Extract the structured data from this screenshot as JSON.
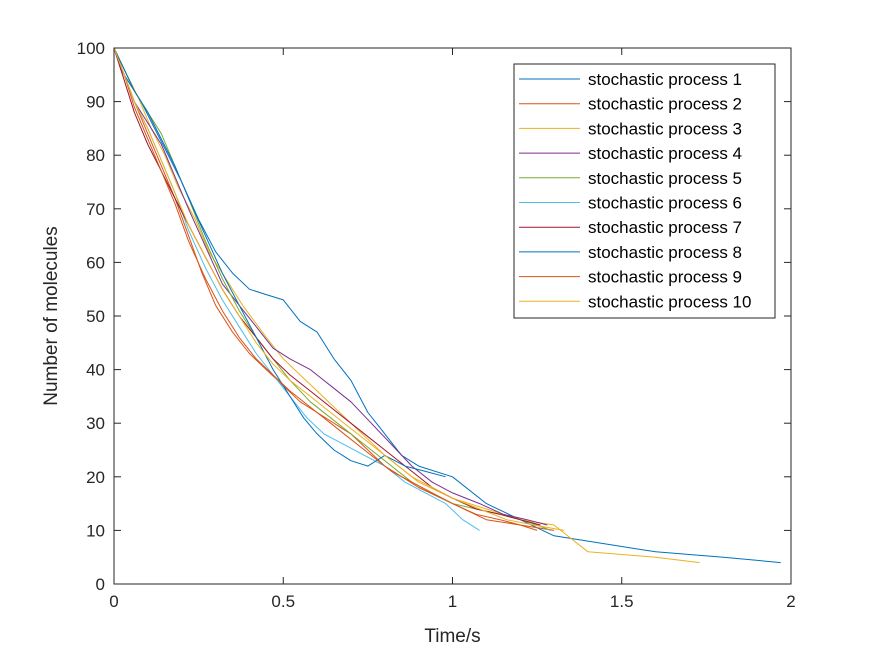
{
  "chart_data": {
    "type": "line",
    "title": "",
    "xlabel": "Time/s",
    "ylabel": "Number of molecules",
    "xlim": [
      0,
      2
    ],
    "ylim": [
      0,
      100
    ],
    "xticks": [
      0,
      0.5,
      1,
      1.5,
      2
    ],
    "xtick_labels": [
      "0",
      "0.5",
      "1",
      "1.5",
      "2"
    ],
    "yticks": [
      0,
      10,
      20,
      30,
      40,
      50,
      60,
      70,
      80,
      90,
      100
    ],
    "ytick_labels": [
      "0",
      "10",
      "20",
      "30",
      "40",
      "50",
      "60",
      "70",
      "80",
      "90",
      "100"
    ],
    "grid": false,
    "legend_position": "top-right",
    "series": [
      {
        "name": "stochastic process 1",
        "color": "#0072BD",
        "x": [
          0,
          0.02,
          0.05,
          0.08,
          0.12,
          0.16,
          0.2,
          0.25,
          0.3,
          0.35,
          0.4,
          0.45,
          0.5,
          0.55,
          0.6,
          0.65,
          0.7,
          0.75,
          0.8,
          0.85,
          0.9,
          1.0,
          1.1,
          1.2,
          1.3,
          1.5,
          1.6,
          1.8,
          1.97
        ],
        "y": [
          100,
          96,
          93,
          90,
          85,
          80,
          75,
          68,
          62,
          58,
          55,
          54,
          53,
          49,
          47,
          42,
          38,
          32,
          28,
          24,
          22,
          20,
          15,
          12,
          9,
          7,
          6,
          5,
          4
        ]
      },
      {
        "name": "stochastic process 2",
        "color": "#D95319",
        "x": [
          0,
          0.03,
          0.06,
          0.1,
          0.14,
          0.18,
          0.22,
          0.26,
          0.3,
          0.35,
          0.4,
          0.45,
          0.5,
          0.55,
          0.6,
          0.7,
          0.8,
          0.9,
          1.0,
          1.1,
          1.2,
          1.3
        ],
        "y": [
          100,
          95,
          90,
          84,
          78,
          72,
          65,
          58,
          52,
          47,
          43,
          40,
          37,
          34,
          32,
          28,
          22,
          18,
          15,
          12,
          11,
          10
        ]
      },
      {
        "name": "stochastic process 3",
        "color": "#EDB120",
        "x": [
          0,
          0.03,
          0.07,
          0.11,
          0.15,
          0.19,
          0.24,
          0.28,
          0.33,
          0.38,
          0.45,
          0.5,
          0.6,
          0.7,
          0.8,
          0.9,
          1.0,
          1.1,
          1.2,
          1.3,
          1.4,
          1.5,
          1.6,
          1.73
        ],
        "y": [
          100,
          96,
          91,
          85,
          80,
          74,
          68,
          62,
          57,
          52,
          46,
          42,
          36,
          30,
          24,
          19,
          16,
          14,
          12,
          11,
          6,
          5.5,
          5,
          4
        ]
      },
      {
        "name": "stochastic process 4",
        "color": "#7E2F8E",
        "x": [
          0,
          0.03,
          0.06,
          0.1,
          0.14,
          0.18,
          0.22,
          0.27,
          0.32,
          0.37,
          0.42,
          0.47,
          0.52,
          0.58,
          0.64,
          0.7,
          0.76,
          0.82,
          0.88,
          0.94,
          1.0,
          1.08,
          1.15,
          1.22,
          1.28
        ],
        "y": [
          100,
          95,
          90,
          86,
          82,
          76,
          70,
          63,
          56,
          52,
          48,
          44,
          42,
          40,
          37,
          34,
          30,
          26,
          22,
          19,
          17,
          15,
          13,
          12,
          11
        ]
      },
      {
        "name": "stochastic process 5",
        "color": "#77AC30",
        "x": [
          0,
          0.03,
          0.06,
          0.1,
          0.14,
          0.18,
          0.22,
          0.27,
          0.32,
          0.37,
          0.42,
          0.47,
          0.52,
          0.58,
          0.64,
          0.7,
          0.76,
          0.82,
          0.88,
          0.94,
          1.0,
          1.07,
          1.14,
          1.2,
          1.25,
          1.29
        ],
        "y": [
          100,
          96,
          92,
          88,
          84,
          78,
          72,
          64,
          57,
          51,
          46,
          42,
          38,
          34,
          31,
          28,
          25,
          22,
          19,
          17,
          15,
          14,
          13,
          12,
          11,
          10
        ]
      },
      {
        "name": "stochastic process 6",
        "color": "#4DBEEE",
        "x": [
          0,
          0.03,
          0.06,
          0.1,
          0.14,
          0.18,
          0.22,
          0.27,
          0.32,
          0.37,
          0.42,
          0.47,
          0.52,
          0.57,
          0.62,
          0.68,
          0.74,
          0.8,
          0.86,
          0.92,
          0.98,
          1.03,
          1.08
        ],
        "y": [
          100,
          95,
          90,
          85,
          79,
          73,
          66,
          59,
          53,
          48,
          43,
          39,
          35,
          31,
          28,
          26,
          24,
          22,
          19,
          17,
          15,
          12,
          10
        ]
      },
      {
        "name": "stochastic process 7",
        "color": "#A2142F",
        "x": [
          0,
          0.03,
          0.06,
          0.1,
          0.14,
          0.18,
          0.22,
          0.27,
          0.32,
          0.37,
          0.42,
          0.47,
          0.52,
          0.58,
          0.64,
          0.7,
          0.76,
          0.82,
          0.88,
          0.94,
          1.0,
          1.07,
          1.14,
          1.2,
          1.26
        ],
        "y": [
          100,
          94,
          88,
          82,
          77,
          72,
          67,
          61,
          55,
          50,
          46,
          42,
          39,
          36,
          33,
          30,
          27,
          24,
          21,
          18,
          16,
          14,
          13,
          12,
          11
        ]
      },
      {
        "name": "stochastic process 8",
        "color": "#0072BD",
        "x": [
          0,
          0.03,
          0.06,
          0.1,
          0.14,
          0.18,
          0.22,
          0.27,
          0.32,
          0.37,
          0.42,
          0.47,
          0.52,
          0.56,
          0.6,
          0.65,
          0.7,
          0.75,
          0.8,
          0.86,
          0.92,
          0.98
        ],
        "y": [
          100,
          96,
          92,
          88,
          83,
          78,
          72,
          65,
          58,
          52,
          46,
          40,
          35,
          31,
          28,
          25,
          23,
          22,
          24,
          22,
          21,
          20
        ]
      },
      {
        "name": "stochastic process 9",
        "color": "#D95319",
        "x": [
          0,
          0.03,
          0.06,
          0.1,
          0.14,
          0.18,
          0.22,
          0.27,
          0.32,
          0.37,
          0.42,
          0.47,
          0.52,
          0.58,
          0.64,
          0.7,
          0.76,
          0.82,
          0.88,
          0.94,
          1.0,
          1.07,
          1.14,
          1.2,
          1.25
        ],
        "y": [
          100,
          95,
          89,
          83,
          77,
          71,
          64,
          57,
          51,
          46,
          42,
          39,
          36,
          33,
          30,
          27,
          24,
          21,
          19,
          17,
          15,
          13,
          12,
          11,
          10
        ]
      },
      {
        "name": "stochastic process 10",
        "color": "#EDB120",
        "x": [
          0,
          0.03,
          0.06,
          0.1,
          0.14,
          0.18,
          0.22,
          0.27,
          0.32,
          0.37,
          0.42,
          0.47,
          0.52,
          0.58,
          0.64,
          0.7,
          0.76,
          0.82,
          0.88,
          0.94,
          1.0,
          1.08,
          1.16,
          1.24,
          1.33
        ],
        "y": [
          100,
          95,
          90,
          85,
          79,
          73,
          67,
          61,
          55,
          50,
          45,
          41,
          38,
          35,
          32,
          29,
          26,
          23,
          20,
          18,
          16,
          14,
          12,
          11,
          10
        ]
      }
    ]
  }
}
